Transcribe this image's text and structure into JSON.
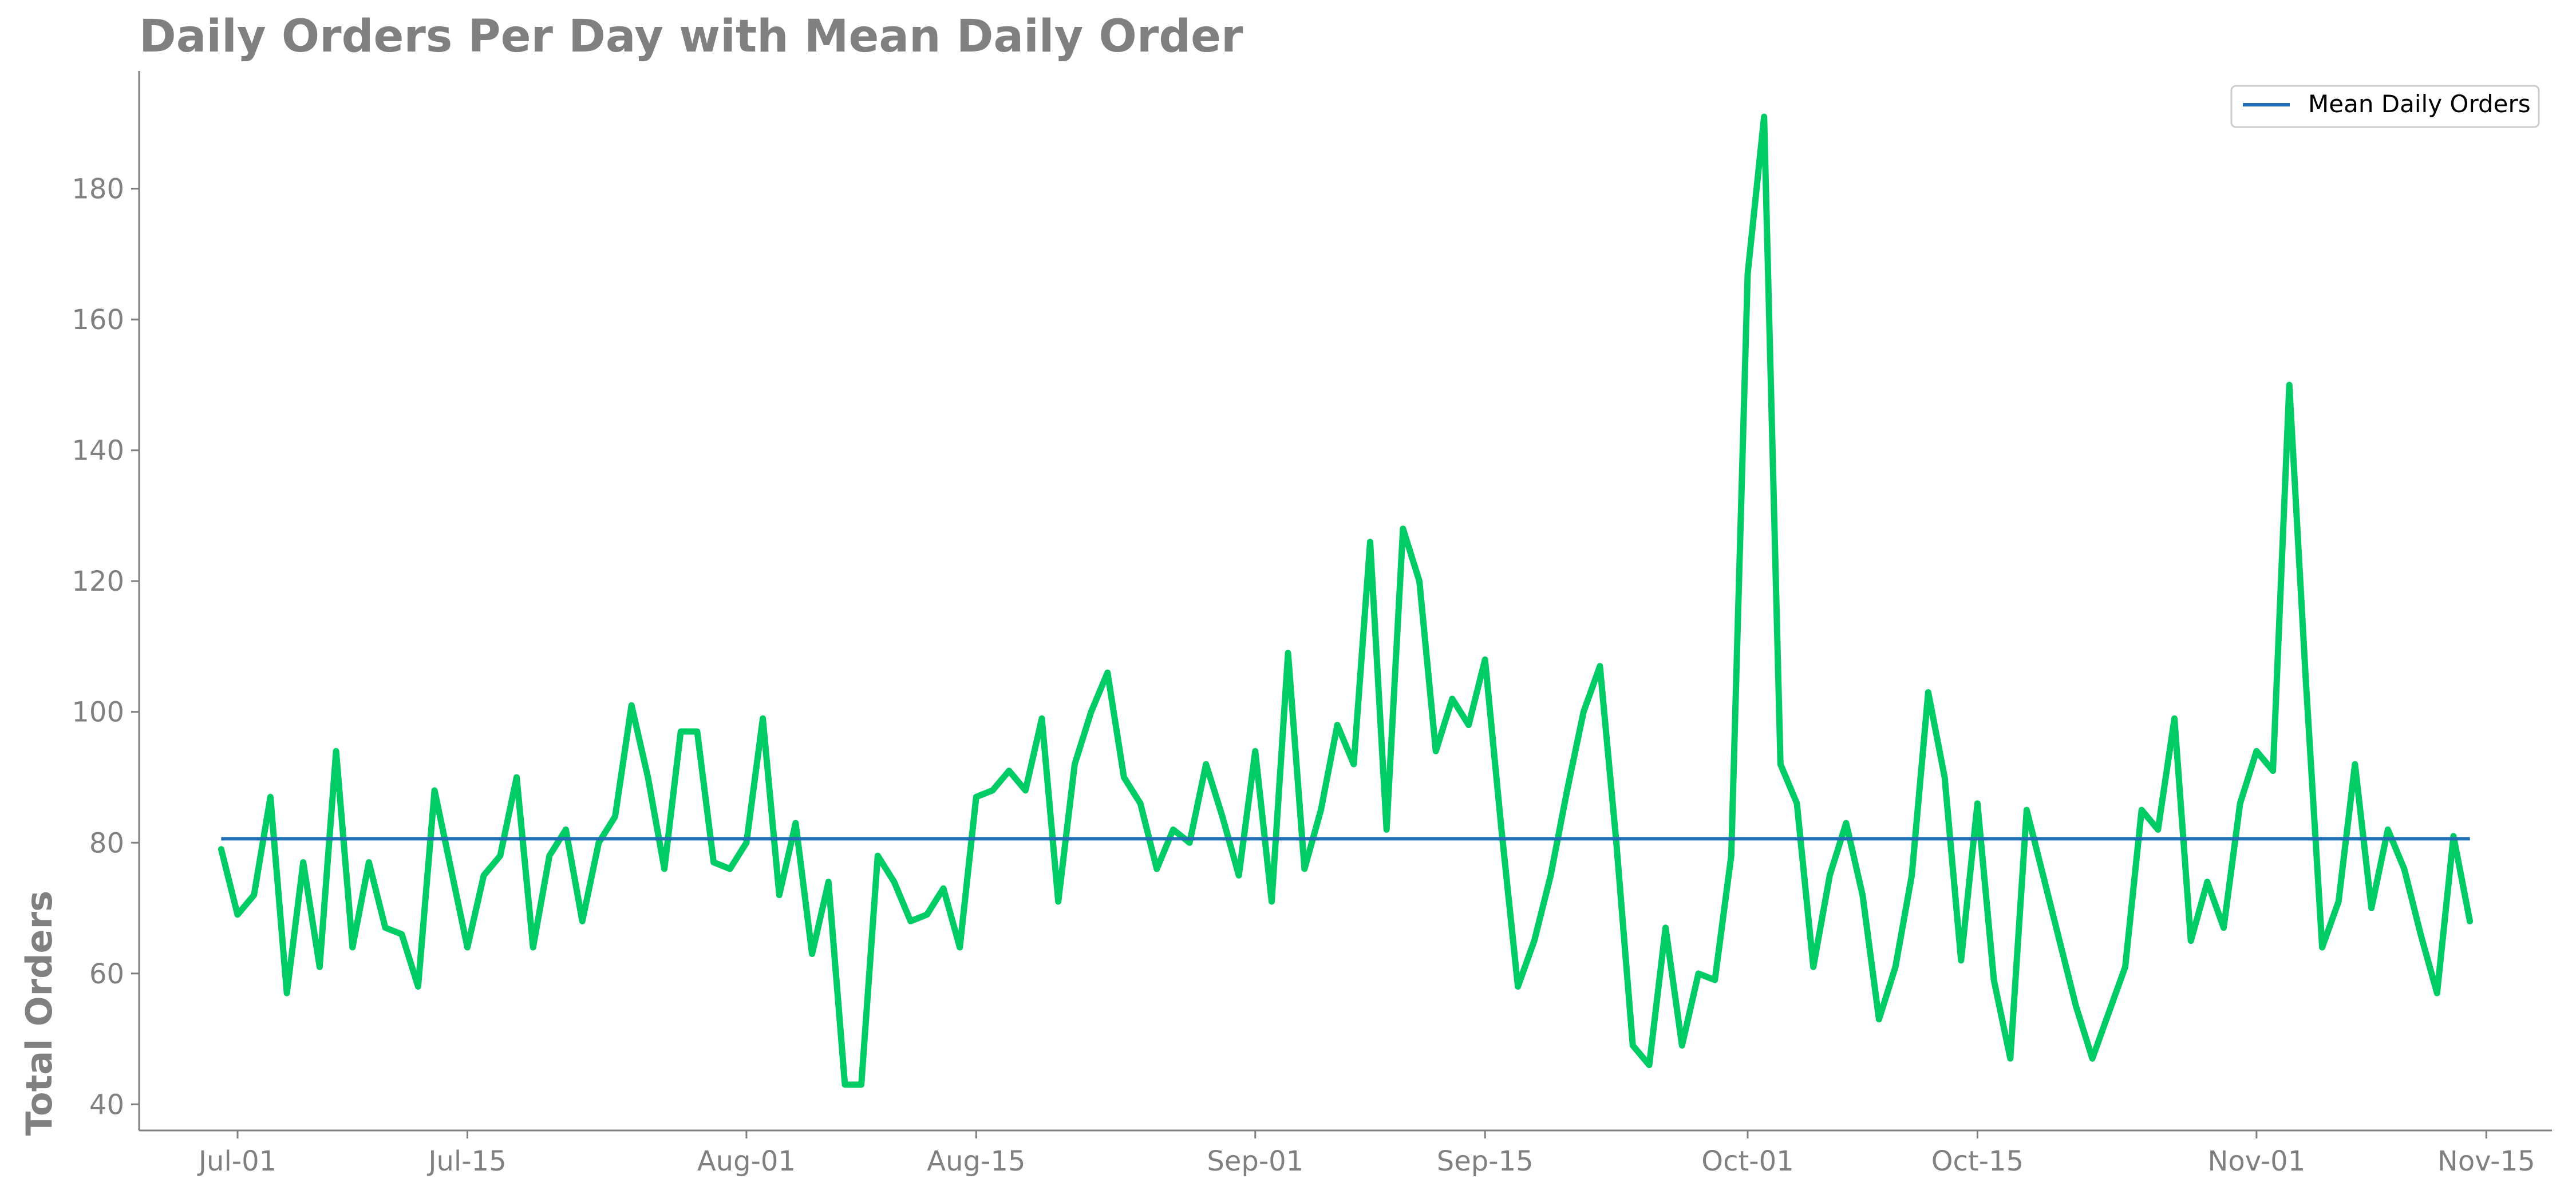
{
  "colors": {
    "series_line": "#00cc66",
    "mean_line": "#1f6fb2",
    "axis": "#808080",
    "text": "#808080"
  },
  "chart_data": {
    "type": "line",
    "title": "Daily Orders Per Day with Mean Daily Order",
    "xlabel": "",
    "ylabel": "Total Orders",
    "ylim": [
      36,
      198
    ],
    "xlim": [
      "2023-06-25",
      "2023-11-19"
    ],
    "grid": false,
    "legend_position": "top-right",
    "legend": [
      "Mean Daily Orders"
    ],
    "x_tick_labels": [
      "Jul-01",
      "Jul-15",
      "Aug-01",
      "Aug-15",
      "Sep-01",
      "Sep-15",
      "Oct-01",
      "Oct-15",
      "Nov-01",
      "Nov-15"
    ],
    "x_tick_dates": [
      "2023-07-01",
      "2023-07-15",
      "2023-08-01",
      "2023-08-15",
      "2023-09-01",
      "2023-09-15",
      "2023-10-01",
      "2023-10-15",
      "2023-11-01",
      "2023-11-15"
    ],
    "y_ticks": [
      40,
      60,
      80,
      100,
      120,
      140,
      160,
      180
    ],
    "x": [
      "2023-06-30",
      "2023-07-01",
      "2023-07-02",
      "2023-07-03",
      "2023-07-04",
      "2023-07-05",
      "2023-07-06",
      "2023-07-07",
      "2023-07-08",
      "2023-07-09",
      "2023-07-10",
      "2023-07-11",
      "2023-07-12",
      "2023-07-13",
      "2023-07-14",
      "2023-07-15",
      "2023-07-16",
      "2023-07-17",
      "2023-07-18",
      "2023-07-19",
      "2023-07-20",
      "2023-07-21",
      "2023-07-22",
      "2023-07-23",
      "2023-07-24",
      "2023-07-25",
      "2023-07-26",
      "2023-07-27",
      "2023-07-28",
      "2023-07-29",
      "2023-07-30",
      "2023-07-31",
      "2023-08-01",
      "2023-08-02",
      "2023-08-03",
      "2023-08-04",
      "2023-08-05",
      "2023-08-06",
      "2023-08-07",
      "2023-08-08",
      "2023-08-09",
      "2023-08-10",
      "2023-08-11",
      "2023-08-12",
      "2023-08-13",
      "2023-08-14",
      "2023-08-15",
      "2023-08-16",
      "2023-08-17",
      "2023-08-18",
      "2023-08-19",
      "2023-08-20",
      "2023-08-21",
      "2023-08-22",
      "2023-08-23",
      "2023-08-24",
      "2023-08-25",
      "2023-08-26",
      "2023-08-27",
      "2023-08-28",
      "2023-08-29",
      "2023-08-30",
      "2023-08-31",
      "2023-09-01",
      "2023-09-02",
      "2023-09-03",
      "2023-09-04",
      "2023-09-05",
      "2023-09-06",
      "2023-09-07",
      "2023-09-08",
      "2023-09-09",
      "2023-09-10",
      "2023-09-11",
      "2023-09-12",
      "2023-09-13",
      "2023-09-14",
      "2023-09-15",
      "2023-09-16",
      "2023-09-17",
      "2023-09-18",
      "2023-09-19",
      "2023-09-20",
      "2023-09-21",
      "2023-09-22",
      "2023-09-23",
      "2023-09-24",
      "2023-09-25",
      "2023-09-26",
      "2023-09-27",
      "2023-09-28",
      "2023-09-29",
      "2023-09-30",
      "2023-10-01",
      "2023-10-02",
      "2023-10-03",
      "2023-10-04",
      "2023-10-05",
      "2023-10-06",
      "2023-10-07",
      "2023-10-08",
      "2023-10-09",
      "2023-10-10",
      "2023-10-11",
      "2023-10-12",
      "2023-10-13",
      "2023-10-14",
      "2023-10-15",
      "2023-10-16",
      "2023-10-17",
      "2023-10-18",
      "2023-10-19",
      "2023-10-20",
      "2023-10-21",
      "2023-10-22",
      "2023-10-23",
      "2023-10-24",
      "2023-10-25",
      "2023-10-26",
      "2023-10-27",
      "2023-10-28",
      "2023-10-29",
      "2023-10-30",
      "2023-10-31",
      "2023-11-01",
      "2023-11-02",
      "2023-11-03",
      "2023-11-04",
      "2023-11-05",
      "2023-11-06",
      "2023-11-07",
      "2023-11-08",
      "2023-11-09",
      "2023-11-10",
      "2023-11-11",
      "2023-11-12",
      "2023-11-13",
      "2023-11-14"
    ],
    "series": [
      {
        "name": "",
        "color": "#00cc66",
        "values": [
          79,
          69,
          72,
          87,
          57,
          77,
          61,
          94,
          64,
          77,
          67,
          66,
          58,
          88,
          76,
          64,
          75,
          78,
          90,
          64,
          78,
          82,
          68,
          80,
          84,
          101,
          90,
          76,
          97,
          97,
          77,
          76,
          80,
          99,
          72,
          83,
          63,
          74,
          43,
          43,
          78,
          74,
          68,
          69,
          73,
          64,
          87,
          88,
          91,
          88,
          99,
          71,
          92,
          100,
          106,
          90,
          86,
          76,
          82,
          80,
          92,
          84,
          75,
          94,
          71,
          109,
          76,
          85,
          98,
          92,
          126,
          82,
          128,
          120,
          94,
          102,
          98,
          108,
          82,
          58,
          65,
          75,
          88,
          100,
          107,
          80,
          49,
          46,
          67,
          49,
          60,
          59,
          78,
          167,
          191,
          92,
          86,
          61,
          75,
          83,
          72,
          53,
          61,
          75,
          103,
          90,
          62,
          86,
          59,
          47,
          85,
          75,
          65,
          55,
          47,
          54,
          61,
          85,
          82,
          99,
          65,
          74,
          67,
          86,
          94,
          91,
          150,
          105,
          64,
          71,
          92,
          70,
          82,
          76,
          66,
          57,
          81,
          68
        ]
      },
      {
        "name": "Mean Daily Orders",
        "color": "#1f6fb2",
        "type": "hline",
        "value": 80.6,
        "x_range": [
          "2023-06-30",
          "2023-11-14"
        ]
      }
    ]
  }
}
